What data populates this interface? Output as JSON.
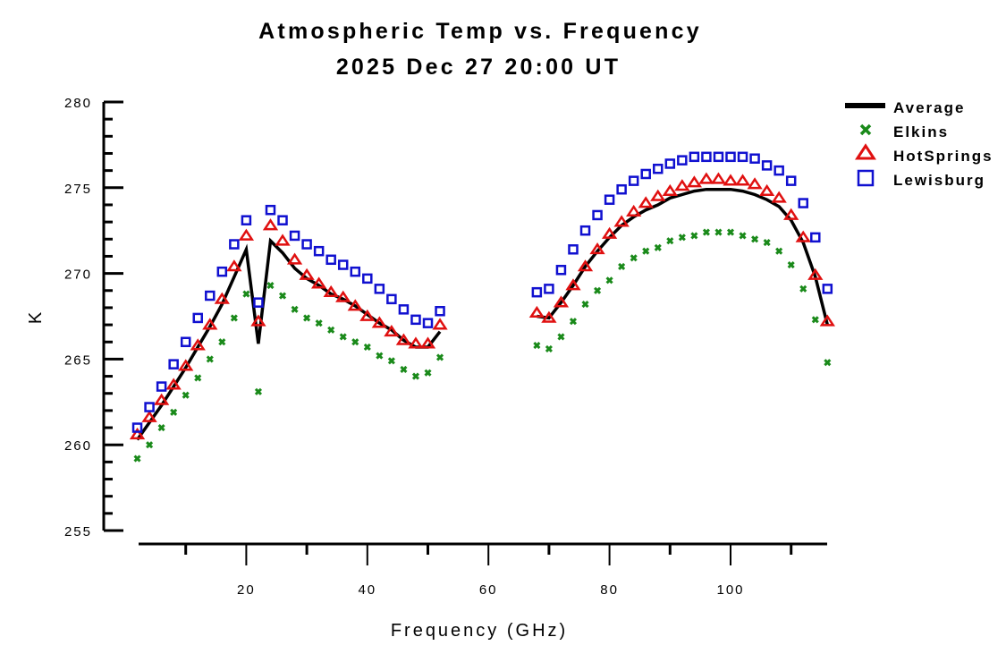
{
  "chart_data": {
    "type": "scatter",
    "title": "Atmospheric Temp vs. Frequency",
    "subtitle": "2025 Dec 27 20:00 UT",
    "xlabel": "Frequency (GHz)",
    "ylabel": "K",
    "xlim": [
      2,
      116
    ],
    "ylim": [
      255,
      280
    ],
    "x_ticks": [
      20,
      40,
      60,
      80,
      100
    ],
    "x_minor_ticks": [
      10,
      30,
      50,
      70,
      90,
      110
    ],
    "y_ticks": [
      255,
      260,
      265,
      270,
      275,
      280
    ],
    "y_minor_step": 1,
    "grid": false,
    "legend_position": "top-right",
    "x": [
      2,
      4,
      6,
      8,
      10,
      12,
      14,
      16,
      18,
      20,
      22,
      24,
      26,
      28,
      30,
      32,
      34,
      36,
      38,
      40,
      42,
      44,
      46,
      48,
      50,
      52,
      68,
      70,
      72,
      74,
      76,
      78,
      80,
      82,
      84,
      86,
      88,
      90,
      92,
      94,
      96,
      98,
      100,
      102,
      104,
      106,
      108,
      110,
      112,
      114,
      116
    ],
    "series": [
      {
        "name": "Average",
        "style": "line",
        "color": "#000000",
        "segment_breaks_after_index": [
          25
        ],
        "values": [
          260.3,
          261.3,
          262.3,
          263.4,
          264.5,
          265.7,
          266.9,
          268.2,
          269.8,
          271.4,
          265.9,
          271.9,
          271.2,
          270.3,
          269.7,
          269.3,
          268.8,
          268.5,
          268.1,
          267.6,
          267.1,
          266.7,
          266.1,
          265.7,
          265.7,
          266.6,
          267.5,
          267.4,
          268.3,
          269.3,
          270.4,
          271.3,
          272.1,
          272.8,
          273.3,
          273.7,
          274.0,
          274.4,
          274.6,
          274.8,
          274.9,
          274.9,
          274.9,
          274.8,
          274.6,
          274.3,
          273.9,
          273.1,
          271.8,
          269.8,
          267.0
        ]
      },
      {
        "name": "Elkins",
        "style": "x-marker",
        "color": "#1a8a1a",
        "values": [
          259.2,
          260.0,
          261.0,
          261.9,
          262.9,
          263.9,
          265.0,
          266.0,
          267.4,
          268.8,
          263.1,
          269.3,
          268.7,
          267.9,
          267.4,
          267.1,
          266.7,
          266.3,
          266.0,
          265.7,
          265.2,
          264.9,
          264.4,
          264.0,
          264.2,
          265.1,
          265.8,
          265.6,
          266.3,
          267.2,
          268.2,
          269.0,
          269.6,
          270.4,
          270.9,
          271.3,
          271.5,
          271.9,
          272.1,
          272.2,
          272.4,
          272.4,
          272.4,
          272.2,
          272.0,
          271.8,
          271.3,
          270.5,
          269.1,
          267.3,
          264.8
        ]
      },
      {
        "name": "HotSprings",
        "style": "triangle-marker",
        "color": "#e01010",
        "values": [
          260.6,
          261.6,
          262.6,
          263.5,
          264.6,
          265.8,
          267.0,
          268.5,
          270.4,
          272.2,
          267.2,
          272.8,
          271.9,
          270.8,
          269.9,
          269.4,
          268.9,
          268.6,
          268.1,
          267.5,
          267.1,
          266.6,
          266.1,
          265.9,
          265.9,
          267.0,
          267.7,
          267.4,
          268.3,
          269.3,
          270.4,
          271.4,
          272.3,
          273.0,
          273.6,
          274.1,
          274.5,
          274.8,
          275.1,
          275.3,
          275.5,
          275.5,
          275.4,
          275.4,
          275.2,
          274.8,
          274.4,
          273.4,
          272.1,
          269.9,
          267.2
        ]
      },
      {
        "name": "Lewisburg",
        "style": "square-marker",
        "color": "#1010d0",
        "values": [
          261.0,
          262.2,
          263.4,
          264.7,
          266.0,
          267.4,
          268.7,
          270.1,
          271.7,
          273.1,
          268.3,
          273.7,
          273.1,
          272.2,
          271.7,
          271.3,
          270.8,
          270.5,
          270.1,
          269.7,
          269.1,
          268.5,
          267.9,
          267.3,
          267.1,
          267.8,
          268.9,
          269.1,
          270.2,
          271.4,
          272.5,
          273.4,
          274.3,
          274.9,
          275.4,
          275.8,
          276.1,
          276.4,
          276.6,
          276.8,
          276.8,
          276.8,
          276.8,
          276.8,
          276.7,
          276.3,
          276.0,
          275.4,
          274.1,
          272.1,
          269.1
        ]
      }
    ]
  }
}
